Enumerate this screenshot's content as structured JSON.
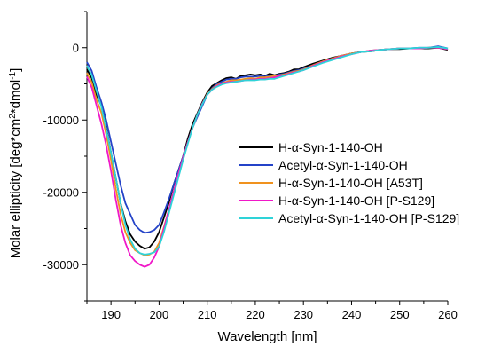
{
  "chart_data": {
    "type": "line",
    "xlabel": "Wavelength [nm]",
    "ylabel": "Molar ellipticity [deg*cm",
    "ylabel_sup1": "2",
    "ylabel_mid": "*dmol",
    "ylabel_sup2": "-1",
    "ylabel_end": "]",
    "xlim": [
      185,
      260
    ],
    "ylim": [
      -35000,
      5000
    ],
    "x_ticks": [
      190,
      200,
      210,
      220,
      230,
      240,
      250,
      260
    ],
    "x_tick_labels": [
      "190",
      "200",
      "210",
      "220",
      "230",
      "240",
      "250",
      "260"
    ],
    "y_ticks": [
      0,
      -10000,
      -20000,
      -30000
    ],
    "y_tick_labels": [
      "0",
      "-10000",
      "-20000",
      "-30000"
    ],
    "grid": false,
    "legend_position": "center-right",
    "series": [
      {
        "name": "H-α-Syn-1-140-OH",
        "color": "#000000",
        "x": [
          185,
          186,
          187,
          188,
          189,
          190,
          191,
          192,
          193,
          194,
          195,
          196,
          197,
          198,
          199,
          200,
          201,
          202,
          203,
          204,
          205,
          206,
          207,
          208,
          209,
          210,
          211,
          212,
          213,
          214,
          215,
          216,
          217,
          218,
          219,
          220,
          221,
          222,
          223,
          224,
          225,
          226,
          227,
          228,
          229,
          230,
          232,
          234,
          236,
          238,
          240,
          242,
          244,
          246,
          248,
          250,
          252,
          254,
          256,
          258,
          260
        ],
        "y": [
          -3000,
          -4200,
          -6500,
          -8000,
          -11000,
          -14500,
          -18000,
          -21500,
          -24000,
          -25800,
          -26800,
          -27400,
          -27800,
          -27600,
          -26800,
          -25500,
          -23500,
          -21500,
          -19000,
          -17000,
          -15000,
          -12500,
          -10500,
          -9000,
          -7500,
          -6200,
          -5300,
          -4900,
          -4500,
          -4200,
          -4100,
          -4300,
          -3900,
          -3800,
          -3700,
          -3800,
          -3700,
          -3900,
          -3600,
          -3800,
          -3600,
          -3500,
          -3300,
          -3000,
          -3000,
          -2700,
          -2200,
          -1800,
          -1400,
          -1100,
          -800,
          -600,
          -500,
          -300,
          -200,
          -200,
          -100,
          -100,
          -100,
          0,
          -300
        ]
      },
      {
        "name": "Acetyl-α-Syn-1-140-OH",
        "color": "#2443c8",
        "x": [
          185,
          186,
          187,
          188,
          189,
          190,
          191,
          192,
          193,
          194,
          195,
          196,
          197,
          198,
          199,
          200,
          201,
          202,
          203,
          204,
          205,
          206,
          207,
          208,
          209,
          210,
          211,
          212,
          213,
          214,
          215,
          216,
          217,
          218,
          219,
          220,
          221,
          222,
          223,
          224,
          225,
          226,
          227,
          228,
          229,
          230,
          232,
          234,
          236,
          238,
          240,
          242,
          244,
          246,
          248,
          250,
          252,
          254,
          256,
          258,
          260
        ],
        "y": [
          -2000,
          -3200,
          -5500,
          -7500,
          -10000,
          -13000,
          -16000,
          -19000,
          -21500,
          -23000,
          -24500,
          -25200,
          -25600,
          -25500,
          -25200,
          -24500,
          -22800,
          -21000,
          -19000,
          -17000,
          -15000,
          -13000,
          -11000,
          -9500,
          -8000,
          -6500,
          -5600,
          -5000,
          -4700,
          -4400,
          -4300,
          -4300,
          -4100,
          -4000,
          -4000,
          -4000,
          -3900,
          -4000,
          -3800,
          -3900,
          -3700,
          -3600,
          -3400,
          -3200,
          -3100,
          -2900,
          -2400,
          -1900,
          -1500,
          -1100,
          -800,
          -600,
          -400,
          -300,
          -200,
          -100,
          -100,
          0,
          0,
          200,
          -100
        ]
      },
      {
        "name": "H-α-Syn-1-140-OH [A53T]",
        "color": "#f0921e",
        "x": [
          185,
          186,
          187,
          188,
          189,
          190,
          191,
          192,
          193,
          194,
          195,
          196,
          197,
          198,
          199,
          200,
          201,
          202,
          203,
          204,
          205,
          206,
          207,
          208,
          209,
          210,
          211,
          212,
          213,
          214,
          215,
          216,
          217,
          218,
          219,
          220,
          221,
          222,
          223,
          224,
          225,
          226,
          227,
          228,
          229,
          230,
          232,
          234,
          236,
          238,
          240,
          242,
          244,
          246,
          248,
          250,
          252,
          254,
          256,
          258,
          260
        ],
        "y": [
          -3500,
          -4800,
          -7200,
          -9000,
          -12000,
          -15500,
          -19500,
          -23000,
          -25500,
          -27000,
          -28000,
          -28400,
          -28700,
          -28600,
          -28200,
          -27000,
          -24800,
          -22500,
          -20000,
          -17500,
          -15200,
          -13000,
          -11000,
          -9200,
          -7700,
          -6400,
          -5700,
          -5200,
          -4900,
          -4700,
          -4500,
          -4500,
          -4400,
          -4300,
          -4200,
          -4300,
          -4100,
          -4100,
          -4000,
          -3900,
          -3800,
          -3700,
          -3500,
          -3300,
          -3200,
          -3000,
          -2400,
          -1900,
          -1500,
          -1100,
          -800,
          -600,
          -400,
          -300,
          -200,
          -100,
          -100,
          -100,
          0,
          0,
          -200
        ]
      },
      {
        "name": "H-α-Syn-1-140-OH [P-S129]",
        "color": "#f018c8",
        "x": [
          185,
          186,
          187,
          188,
          189,
          190,
          191,
          192,
          193,
          194,
          195,
          196,
          197,
          198,
          199,
          200,
          201,
          202,
          203,
          204,
          205,
          206,
          207,
          208,
          209,
          210,
          211,
          212,
          213,
          214,
          215,
          216,
          217,
          218,
          219,
          220,
          221,
          222,
          223,
          224,
          225,
          226,
          227,
          228,
          229,
          230,
          232,
          234,
          236,
          238,
          240,
          242,
          244,
          246,
          248,
          250,
          252,
          254,
          256,
          258,
          260
        ],
        "y": [
          -4000,
          -5500,
          -8000,
          -10500,
          -13500,
          -17000,
          -21000,
          -24500,
          -27000,
          -28700,
          -29500,
          -30000,
          -30300,
          -30000,
          -29000,
          -27500,
          -25000,
          -22500,
          -20000,
          -17500,
          -15200,
          -13000,
          -11000,
          -9200,
          -7700,
          -6500,
          -5800,
          -5300,
          -5000,
          -4800,
          -4700,
          -4700,
          -4600,
          -4500,
          -4400,
          -4400,
          -4300,
          -4300,
          -4200,
          -4100,
          -3900,
          -3800,
          -3600,
          -3400,
          -3300,
          -3100,
          -2500,
          -2000,
          -1600,
          -1200,
          -900,
          -600,
          -400,
          -300,
          -200,
          -100,
          -100,
          -100,
          0,
          0,
          -200
        ]
      },
      {
        "name": "Acetyl-α-Syn-1-140-OH [P-S129]",
        "color": "#2ed3d8",
        "x": [
          185,
          186,
          187,
          188,
          189,
          190,
          191,
          192,
          193,
          194,
          195,
          196,
          197,
          198,
          199,
          200,
          201,
          202,
          203,
          204,
          205,
          206,
          207,
          208,
          209,
          210,
          211,
          212,
          213,
          214,
          215,
          216,
          217,
          218,
          219,
          220,
          221,
          222,
          223,
          224,
          225,
          226,
          227,
          228,
          229,
          230,
          232,
          234,
          236,
          238,
          240,
          242,
          244,
          246,
          248,
          250,
          252,
          254,
          256,
          258,
          260
        ],
        "y": [
          -2500,
          -3800,
          -6000,
          -8200,
          -11200,
          -14500,
          -18000,
          -21500,
          -24500,
          -26500,
          -27800,
          -28400,
          -28600,
          -28500,
          -28300,
          -27500,
          -25500,
          -23000,
          -20500,
          -18000,
          -15500,
          -13200,
          -11000,
          -9200,
          -7800,
          -6500,
          -5800,
          -5400,
          -5100,
          -4900,
          -4800,
          -4700,
          -4600,
          -4500,
          -4500,
          -4500,
          -4400,
          -4400,
          -4300,
          -4300,
          -4100,
          -3900,
          -3700,
          -3500,
          -3300,
          -3100,
          -2600,
          -2100,
          -1700,
          -1300,
          -900,
          -600,
          -500,
          -300,
          -200,
          -100,
          -100,
          0,
          0,
          100,
          -100
        ]
      }
    ]
  }
}
